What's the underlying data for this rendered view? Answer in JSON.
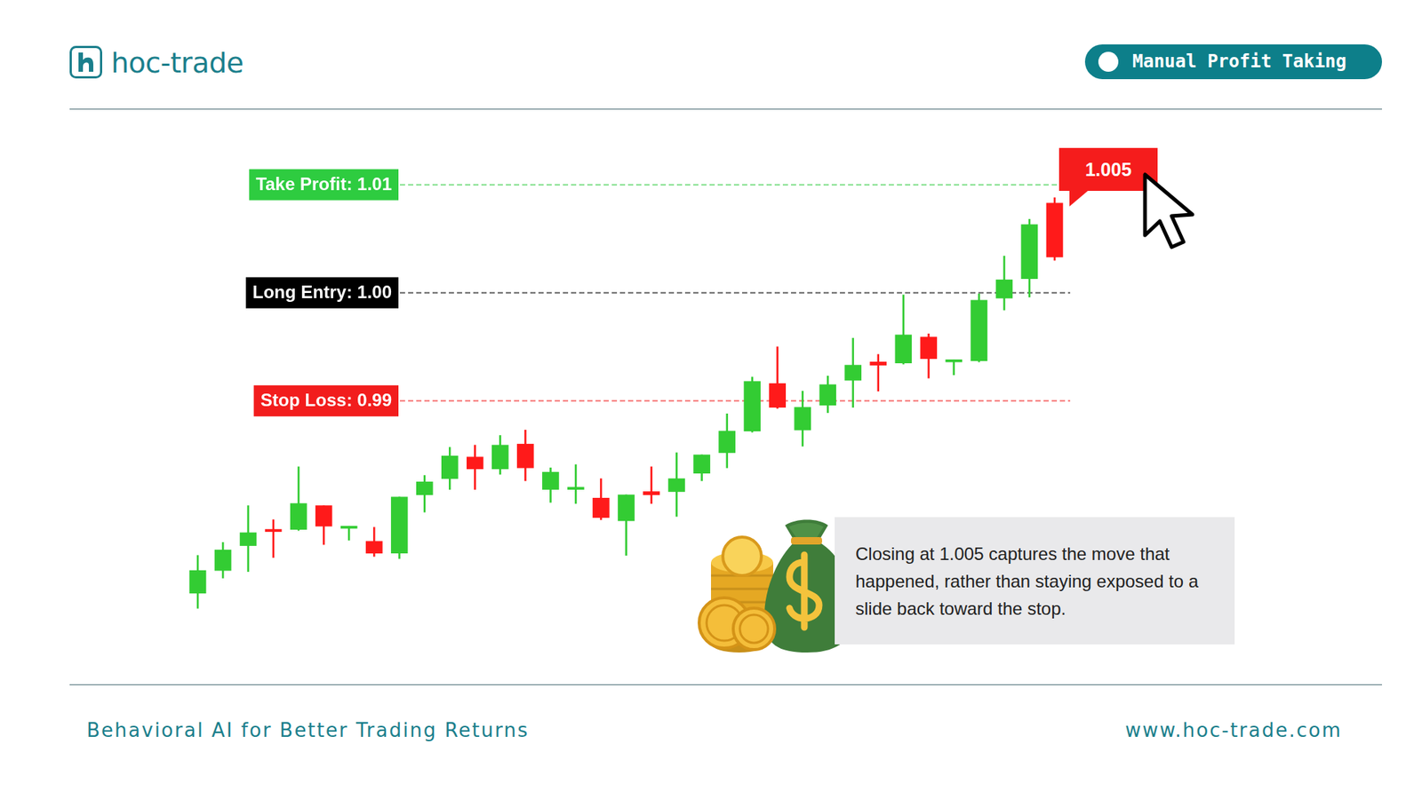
{
  "header": {
    "logo": "hoc-trade",
    "badge": "Manual Profit Taking"
  },
  "footer": {
    "tagline": "Behavioral AI for Better Trading Returns",
    "url": "www.hoc-trade.com"
  },
  "chart_data": {
    "type": "candlestick",
    "categories": [
      null,
      null,
      null,
      null,
      null,
      null,
      null,
      null,
      null,
      null,
      null,
      null,
      null,
      null,
      null,
      null,
      null,
      null,
      null,
      null,
      null,
      null,
      null,
      null,
      null,
      null,
      null,
      null,
      null,
      null,
      null,
      null,
      null,
      null,
      null
    ],
    "open": [
      0.9722,
      0.9743,
      0.9766,
      0.9781,
      0.9781,
      0.9803,
      0.9782,
      0.977,
      0.9759,
      0.9813,
      0.9828,
      0.9848,
      0.9837,
      0.986,
      0.9818,
      0.9818,
      0.981,
      0.9789,
      0.9816,
      0.9816,
      0.9833,
      0.9852,
      0.9872,
      0.9916,
      0.9873,
      0.9896,
      0.9919,
      0.9936,
      0.9935,
      0.9959,
      0.9936,
      0.9937,
      0.9995,
      1.0013,
      1.0083
    ],
    "high": [
      0.9757,
      0.9769,
      0.9803,
      0.979,
      0.9839,
      0.9803,
      0.9784,
      0.9783,
      0.9811,
      0.9831,
      0.9857,
      0.9859,
      0.9868,
      0.9873,
      0.9838,
      0.9841,
      0.9828,
      0.9813,
      0.9839,
      0.9852,
      0.985,
      0.9888,
      0.9922,
      0.995,
      0.9909,
      0.9923,
      0.9958,
      0.9943,
      0.9998,
      0.9962,
      0.9938,
      0.9999,
      1.0034,
      1.0068,
      1.0088
    ],
    "low": [
      0.9708,
      0.9736,
      0.9742,
      0.9755,
      0.978,
      0.9767,
      0.9771,
      0.9756,
      0.9754,
      0.9797,
      0.9818,
      0.9818,
      0.9832,
      0.9826,
      0.9806,
      0.9805,
      0.979,
      0.9757,
      0.9805,
      0.9793,
      0.9826,
      0.9838,
      0.9871,
      0.9893,
      0.9858,
      0.9889,
      0.9894,
      0.9909,
      0.9934,
      0.9921,
      0.9924,
      0.9936,
      0.9984,
      0.9996,
      1.003
    ],
    "close": [
      0.9743,
      0.9762,
      0.9778,
      0.9779,
      0.9805,
      0.9784,
      0.9783,
      0.9759,
      0.9811,
      0.9825,
      0.9849,
      0.9837,
      0.9859,
      0.9838,
      0.9834,
      0.982,
      0.9792,
      0.9813,
      0.9813,
      0.9828,
      0.985,
      0.9872,
      0.9918,
      0.9894,
      0.9894,
      0.9915,
      0.9933,
      0.9933,
      0.9961,
      0.9939,
      0.9938,
      0.9993,
      1.0012,
      1.0063,
      1.0033
    ],
    "colors": [
      "#33cc33",
      "#33cc33",
      "#33cc33",
      "#ff1a1a",
      "#33cc33",
      "#ff1a1a",
      "#33cc33",
      "#ff1a1a",
      "#33cc33",
      "#33cc33",
      "#33cc33",
      "#ff1a1a",
      "#33cc33",
      "#ff1a1a",
      "#33cc33",
      "#33cc33",
      "#ff1a1a",
      "#33cc33",
      "#ff1a1a",
      "#33cc33",
      "#33cc33",
      "#33cc33",
      "#33cc33",
      "#ff1a1a",
      "#33cc33",
      "#33cc33",
      "#33cc33",
      "#ff1a1a",
      "#33cc33",
      "#ff1a1a",
      "#33cc33",
      "#33cc33",
      "#33cc33",
      "#33cc33",
      "#ff1a1a"
    ],
    "ylim": [
      0.965,
      1.016
    ],
    "tick_labels": false,
    "grid": false,
    "levels": [
      {
        "label": "Take Profit: 1.01",
        "value": 1.01,
        "color": "#2ecc40"
      },
      {
        "label": "Long Entry: 1.00",
        "value": 1.0,
        "color": "#000000"
      },
      {
        "label": "Stop Loss: 0.99",
        "value": 0.99,
        "color": "#f21d1d"
      }
    ],
    "price_label": "1.005",
    "note": "Closing at 1.005 captures the move that happened, rather than staying exposed to a slide back toward the stop."
  }
}
